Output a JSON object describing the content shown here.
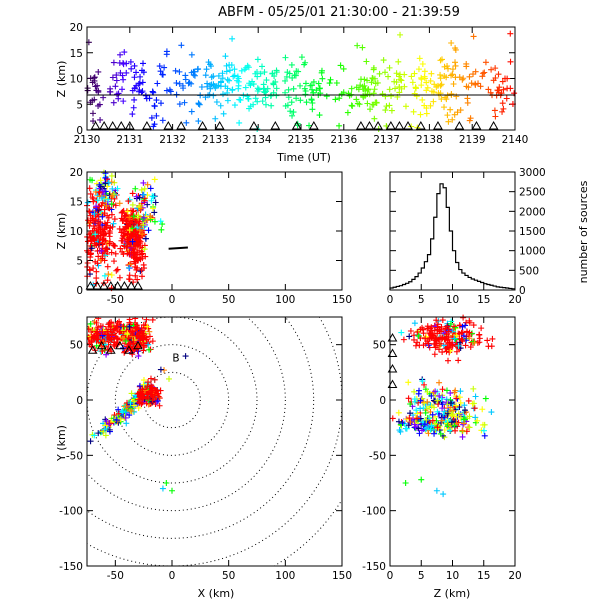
{
  "chart_data": [
    {
      "panel": "time-height",
      "type": "scatter",
      "title": "ABFM - 05/25/01 21:30:00 - 21:39:59",
      "xlabel": "Time (UT)",
      "ylabel": "Z (km)",
      "xlim": [
        2130,
        2140
      ],
      "ylim": [
        0,
        20
      ],
      "xticks": [
        "2130",
        "2131",
        "2132",
        "2133",
        "2134",
        "2135",
        "2136",
        "2137",
        "2138",
        "2139",
        "2140"
      ],
      "yticks": [
        "0",
        "5",
        "10",
        "15",
        "20"
      ],
      "reference_line_z_km": 6.8,
      "color_encoding": "time (purple early -> red late)",
      "bands": [
        {
          "t": 2130.0,
          "zlo": 2.5,
          "zhi": 12.5
        },
        {
          "t": 2131.0,
          "zlo": 3.0,
          "zhi": 14.0
        },
        {
          "t": 2132.0,
          "zlo": 2.5,
          "zhi": 13.0
        },
        {
          "t": 2133.0,
          "zlo": 3.0,
          "zhi": 13.5
        },
        {
          "t": 2134.0,
          "zlo": 3.5,
          "zhi": 13.0
        },
        {
          "t": 2135.0,
          "zlo": 3.0,
          "zhi": 13.5
        },
        {
          "t": 2136.0,
          "zlo": 3.5,
          "zhi": 13.0
        },
        {
          "t": 2137.0,
          "zlo": 3.0,
          "zhi": 13.0
        },
        {
          "t": 2138.0,
          "zlo": 2.5,
          "zhi": 13.5
        },
        {
          "t": 2139.0,
          "zlo": 3.0,
          "zhi": 14.0
        },
        {
          "t": 2140.0,
          "zlo": 2.5,
          "zhi": 13.0
        }
      ],
      "station_triangles_t": [
        2130.2,
        2130.4,
        2130.6,
        2130.8,
        2131.0,
        2131.4,
        2131.9,
        2132.2,
        2132.7,
        2133.1,
        2133.9,
        2134.4,
        2134.9,
        2135.3,
        2136.4,
        2136.6,
        2136.8,
        2137.1,
        2137.3,
        2137.5,
        2137.8,
        2138.2,
        2138.7,
        2139.1,
        2139.5
      ]
    },
    {
      "panel": "x-height",
      "type": "scatter",
      "xlabel": "",
      "ylabel": "Z (km)",
      "xlim": [
        -75,
        150
      ],
      "ylim": [
        0,
        20
      ],
      "xticks": [
        "-50",
        "0",
        "50",
        "100",
        "150"
      ],
      "yticks": [
        "0",
        "5",
        "10",
        "15",
        "20"
      ],
      "clusters": [
        {
          "x": -65,
          "z": 9.0,
          "sx": 8,
          "sz": 3.5,
          "color": "#ff0000"
        },
        {
          "x": -35,
          "z": 8.5,
          "sx": 5,
          "sz": 3.0,
          "color": "#ff0000"
        },
        {
          "x": -60,
          "z": 16.5,
          "sx": 6,
          "sz": 1.8,
          "color": "mixed"
        },
        {
          "x": -25,
          "z": 13.0,
          "sx": 6,
          "sz": 2.5,
          "color": "mixed"
        }
      ],
      "black_line": {
        "x": [
          -3,
          14
        ],
        "z": [
          7.0,
          7.2
        ]
      }
    },
    {
      "panel": "height-histogram",
      "type": "line",
      "xlabel": "",
      "ylabel": "number of sources",
      "xlim": [
        0,
        20
      ],
      "ylim": [
        0,
        3000
      ],
      "xticks": [
        "0",
        "5",
        "10",
        "15",
        "20"
      ],
      "yticks": [
        "0",
        "500",
        "1000",
        "1500",
        "2000",
        "2500",
        "3000"
      ],
      "bin_centers_km": [
        0.25,
        0.75,
        1.25,
        1.75,
        2.25,
        2.75,
        3.25,
        3.75,
        4.25,
        4.75,
        5.25,
        5.75,
        6.25,
        6.75,
        7.25,
        7.75,
        8.25,
        8.75,
        9.25,
        9.75,
        10.25,
        10.75,
        11.25,
        11.75,
        12.25,
        12.75,
        13.25,
        13.75,
        14.25,
        14.75,
        15.25,
        15.75,
        16.25,
        16.75,
        17.25,
        17.75,
        18.25,
        18.75,
        19.25,
        19.75
      ],
      "counts": [
        50,
        70,
        90,
        110,
        140,
        170,
        210,
        270,
        340,
        430,
        560,
        720,
        900,
        1300,
        1850,
        2450,
        2700,
        2600,
        2100,
        1500,
        1000,
        700,
        520,
        430,
        370,
        320,
        280,
        250,
        220,
        190,
        160,
        140,
        120,
        100,
        80,
        70,
        60,
        50,
        40,
        30
      ]
    },
    {
      "panel": "plan-view",
      "type": "scatter",
      "xlabel": "X (km)",
      "ylabel": "Y (km)",
      "xlim": [
        -75,
        150
      ],
      "ylim": [
        -150,
        75
      ],
      "xticks": [
        "-50",
        "0",
        "50",
        "100",
        "150"
      ],
      "yticks": [
        "-150",
        "-100",
        "-50",
        "0",
        "50"
      ],
      "range_rings_km": [
        25,
        50,
        75,
        100,
        125,
        150,
        175
      ],
      "station_label": "B",
      "clusters": [
        {
          "x": -60,
          "y": 57,
          "sx": 9,
          "sy": 6,
          "color": "#ff0000"
        },
        {
          "x": -32,
          "y": 58,
          "sx": 6,
          "sy": 7,
          "color": "#ff0000"
        },
        {
          "x": -40,
          "y": -8,
          "sx": 9,
          "sy": 9,
          "color": "mixed"
        },
        {
          "x": -20,
          "y": 5,
          "sx": 4,
          "sy": 4,
          "color": "#ff0000"
        }
      ],
      "outliers": [
        {
          "x": -5,
          "y": -75
        },
        {
          "x": -8,
          "y": -80
        },
        {
          "x": 0,
          "y": -82
        }
      ]
    },
    {
      "panel": "height-y",
      "type": "scatter",
      "xlabel": "Z (km)",
      "ylabel": "",
      "xlim": [
        0,
        20
      ],
      "ylim": [
        -150,
        75
      ],
      "xticks": [
        "0",
        "5",
        "10",
        "15",
        "20"
      ],
      "yticks": [
        "-150",
        "-100",
        "-50",
        "0",
        "50"
      ],
      "clusters": [
        {
          "z": 9.0,
          "y": 57,
          "sz": 3.0,
          "sy": 7,
          "color": "#ff0000"
        },
        {
          "z": 8.5,
          "y": -5,
          "sz": 3.0,
          "sy": 10,
          "color": "mixed"
        },
        {
          "z": 7.0,
          "y": -22,
          "sz": 3.0,
          "sy": 5,
          "color": "mixed"
        }
      ],
      "outliers": [
        {
          "z": 2.5,
          "y": -75
        },
        {
          "z": 5.0,
          "y": -72
        },
        {
          "z": 7.5,
          "y": -82
        },
        {
          "z": 8.5,
          "y": -85
        }
      ]
    }
  ]
}
